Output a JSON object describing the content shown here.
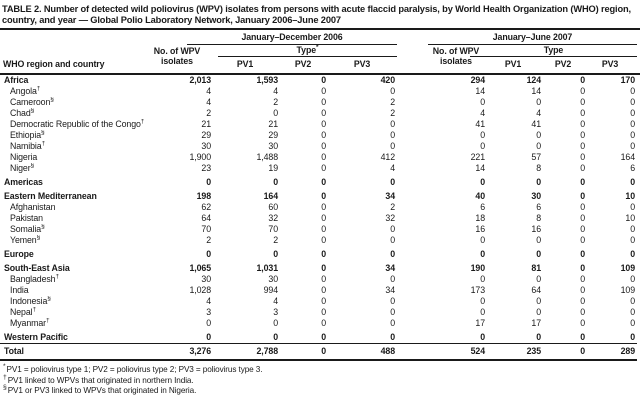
{
  "title": "TABLE 2. Number of detected wild poliovirus (WPV) isolates from persons with acute flaccid paralysis, by World Health Organization (WHO) region, country, and year — Global Polio Laboratory Network, January 2006–June 2007",
  "header": {
    "row_label": "WHO region and country",
    "groups": [
      {
        "label": "January–December 2006",
        "isolates_label": "No. of WPV isolates",
        "type_label": "Type",
        "type_sup": "*",
        "cols": [
          "PV1",
          "PV2",
          "PV3"
        ]
      },
      {
        "label": "January–June 2007",
        "isolates_label": "No. of WPV isolates",
        "type_label": "Type",
        "type_sup": "",
        "cols": [
          "PV1",
          "PV2",
          "PV3"
        ]
      }
    ]
  },
  "rows": [
    {
      "label": "Africa",
      "sup": "",
      "region": true,
      "group_start": false,
      "values": [
        "2,013",
        "1,593",
        "0",
        "420",
        "294",
        "124",
        "0",
        "170"
      ]
    },
    {
      "label": "Angola",
      "sup": "†",
      "region": false,
      "group_start": false,
      "values": [
        "4",
        "4",
        "0",
        "0",
        "14",
        "14",
        "0",
        "0"
      ]
    },
    {
      "label": "Cameroon",
      "sup": "§",
      "region": false,
      "group_start": false,
      "values": [
        "4",
        "2",
        "0",
        "2",
        "0",
        "0",
        "0",
        "0"
      ]
    },
    {
      "label": "Chad",
      "sup": "§",
      "region": false,
      "group_start": false,
      "values": [
        "2",
        "0",
        "0",
        "2",
        "4",
        "4",
        "0",
        "0"
      ]
    },
    {
      "label": "Democratic Republic of the Congo",
      "sup": "†",
      "region": false,
      "group_start": false,
      "values": [
        "21",
        "21",
        "0",
        "0",
        "41",
        "41",
        "0",
        "0"
      ]
    },
    {
      "label": "Ethiopia",
      "sup": "§",
      "region": false,
      "group_start": false,
      "values": [
        "29",
        "29",
        "0",
        "0",
        "0",
        "0",
        "0",
        "0"
      ]
    },
    {
      "label": "Namibia",
      "sup": "†",
      "region": false,
      "group_start": false,
      "values": [
        "30",
        "30",
        "0",
        "0",
        "0",
        "0",
        "0",
        "0"
      ]
    },
    {
      "label": "Nigeria",
      "sup": "",
      "region": false,
      "group_start": false,
      "values": [
        "1,900",
        "1,488",
        "0",
        "412",
        "221",
        "57",
        "0",
        "164"
      ]
    },
    {
      "label": "Niger",
      "sup": "§",
      "region": false,
      "group_start": false,
      "values": [
        "23",
        "19",
        "0",
        "4",
        "14",
        "8",
        "0",
        "6"
      ]
    },
    {
      "label": "Americas",
      "sup": "",
      "region": true,
      "group_start": true,
      "values": [
        "0",
        "0",
        "0",
        "0",
        "0",
        "0",
        "0",
        "0"
      ]
    },
    {
      "label": "Eastern Mediterranean",
      "sup": "",
      "region": true,
      "group_start": true,
      "values": [
        "198",
        "164",
        "0",
        "34",
        "40",
        "30",
        "0",
        "10"
      ]
    },
    {
      "label": "Afghanistan",
      "sup": "",
      "region": false,
      "group_start": false,
      "values": [
        "62",
        "60",
        "0",
        "2",
        "6",
        "6",
        "0",
        "0"
      ]
    },
    {
      "label": "Pakistan",
      "sup": "",
      "region": false,
      "group_start": false,
      "values": [
        "64",
        "32",
        "0",
        "32",
        "18",
        "8",
        "0",
        "10"
      ]
    },
    {
      "label": "Somalia",
      "sup": "§",
      "region": false,
      "group_start": false,
      "values": [
        "70",
        "70",
        "0",
        "0",
        "16",
        "16",
        "0",
        "0"
      ]
    },
    {
      "label": "Yemen",
      "sup": "§",
      "region": false,
      "group_start": false,
      "values": [
        "2",
        "2",
        "0",
        "0",
        "0",
        "0",
        "0",
        "0"
      ]
    },
    {
      "label": "Europe",
      "sup": "",
      "region": true,
      "group_start": true,
      "values": [
        "0",
        "0",
        "0",
        "0",
        "0",
        "0",
        "0",
        "0"
      ]
    },
    {
      "label": "South-East Asia",
      "sup": "",
      "region": true,
      "group_start": true,
      "values": [
        "1,065",
        "1,031",
        "0",
        "34",
        "190",
        "81",
        "0",
        "109"
      ]
    },
    {
      "label": "Bangladesh",
      "sup": "†",
      "region": false,
      "group_start": false,
      "values": [
        "30",
        "30",
        "0",
        "0",
        "0",
        "0",
        "0",
        "0"
      ]
    },
    {
      "label": "India",
      "sup": "",
      "region": false,
      "group_start": false,
      "values": [
        "1,028",
        "994",
        "0",
        "34",
        "173",
        "64",
        "0",
        "109"
      ]
    },
    {
      "label": "Indonesia",
      "sup": "§",
      "region": false,
      "group_start": false,
      "values": [
        "4",
        "4",
        "0",
        "0",
        "0",
        "0",
        "0",
        "0"
      ]
    },
    {
      "label": "Nepal",
      "sup": "†",
      "region": false,
      "group_start": false,
      "values": [
        "3",
        "3",
        "0",
        "0",
        "0",
        "0",
        "0",
        "0"
      ]
    },
    {
      "label": "Myanmar",
      "sup": "†",
      "region": false,
      "group_start": false,
      "values": [
        "0",
        "0",
        "0",
        "0",
        "17",
        "17",
        "0",
        "0"
      ]
    },
    {
      "label": "Western Pacific",
      "sup": "",
      "region": true,
      "group_start": true,
      "values": [
        "0",
        "0",
        "0",
        "0",
        "0",
        "0",
        "0",
        "0"
      ]
    },
    {
      "label": "Total",
      "sup": "",
      "region": true,
      "group_start": false,
      "total": true,
      "values": [
        "3,276",
        "2,788",
        "0",
        "488",
        "524",
        "235",
        "0",
        "289"
      ]
    }
  ],
  "footnotes": [
    {
      "marker": "*",
      "text": "PV1 = poliovirus type 1; PV2 = poliovirus type 2; PV3 = poliovirus type 3."
    },
    {
      "marker": "†",
      "text": "PV1 linked to WPVs that originated in northern India."
    },
    {
      "marker": "§",
      "text": "PV1 or PV3 linked to WPVs that originated in Nigeria."
    }
  ]
}
